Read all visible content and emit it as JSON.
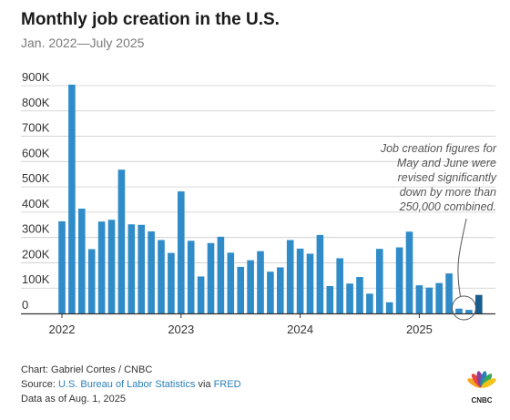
{
  "header": {
    "title": "Monthly job creation in the U.S.",
    "subtitle": "Jan. 2022—July 2025"
  },
  "annotation": {
    "lines": [
      "Job creation figures for",
      "May and June were",
      "revised significantly",
      "down by more than",
      "250,000 combined."
    ]
  },
  "footer": {
    "chart_credit": "Chart: Gabriel Cortes / CNBC",
    "source_prefix": "Source: ",
    "source_bls": "U.S. Bureau of Labor Statistics",
    "source_via": " via ",
    "source_fred": "FRED",
    "data_asof": "Data as of Aug. 1, 2025"
  },
  "logo": {
    "text": "CNBC",
    "colors": [
      "#f5a623",
      "#e8463f",
      "#8e3c97",
      "#2a7fb8",
      "#3aa655",
      "#f2c318"
    ]
  },
  "colors": {
    "bar": "#2f8cc9",
    "bar_latest": "#175d8e",
    "grid": "#cccccc",
    "axis": "#333333"
  },
  "chart_data": {
    "type": "bar",
    "title": "Monthly job creation in the U.S.",
    "subtitle": "Jan. 2022—July 2025",
    "xlabel": "",
    "ylabel": "",
    "ylim": [
      0,
      900000
    ],
    "grid": true,
    "yticks": [
      0,
      100000,
      200000,
      300000,
      400000,
      500000,
      600000,
      700000,
      800000,
      900000
    ],
    "ytick_labels": [
      "0",
      "100K",
      "200K",
      "300K",
      "400K",
      "500K",
      "600K",
      "700K",
      "800K",
      "900K"
    ],
    "xtick_labels": [
      "2022",
      "2023",
      "2024",
      "2025"
    ],
    "xtick_months": [
      "2022-01",
      "2023-01",
      "2024-01",
      "2025-01"
    ],
    "months": [
      "2022-01",
      "2022-02",
      "2022-03",
      "2022-04",
      "2022-05",
      "2022-06",
      "2022-07",
      "2022-08",
      "2022-09",
      "2022-10",
      "2022-11",
      "2022-12",
      "2023-01",
      "2023-02",
      "2023-03",
      "2023-04",
      "2023-05",
      "2023-06",
      "2023-07",
      "2023-08",
      "2023-09",
      "2023-10",
      "2023-11",
      "2023-12",
      "2024-01",
      "2024-02",
      "2024-03",
      "2024-04",
      "2024-05",
      "2024-06",
      "2024-07",
      "2024-08",
      "2024-09",
      "2024-10",
      "2024-11",
      "2024-12",
      "2025-01",
      "2025-02",
      "2025-03",
      "2025-04",
      "2025-05",
      "2025-06",
      "2025-07"
    ],
    "values": [
      364000,
      904000,
      414000,
      254000,
      363000,
      370000,
      568000,
      352000,
      350000,
      324000,
      290000,
      239000,
      482000,
      287000,
      146000,
      278000,
      303000,
      240000,
      184000,
      210000,
      246000,
      165000,
      182000,
      290000,
      256000,
      236000,
      310000,
      108000,
      218000,
      118000,
      144000,
      78000,
      255000,
      44000,
      261000,
      323000,
      111000,
      102000,
      120000,
      158000,
      19000,
      14000,
      73000
    ],
    "highlight_last": true,
    "annotation_target": [
      "2025-05",
      "2025-06"
    ]
  }
}
